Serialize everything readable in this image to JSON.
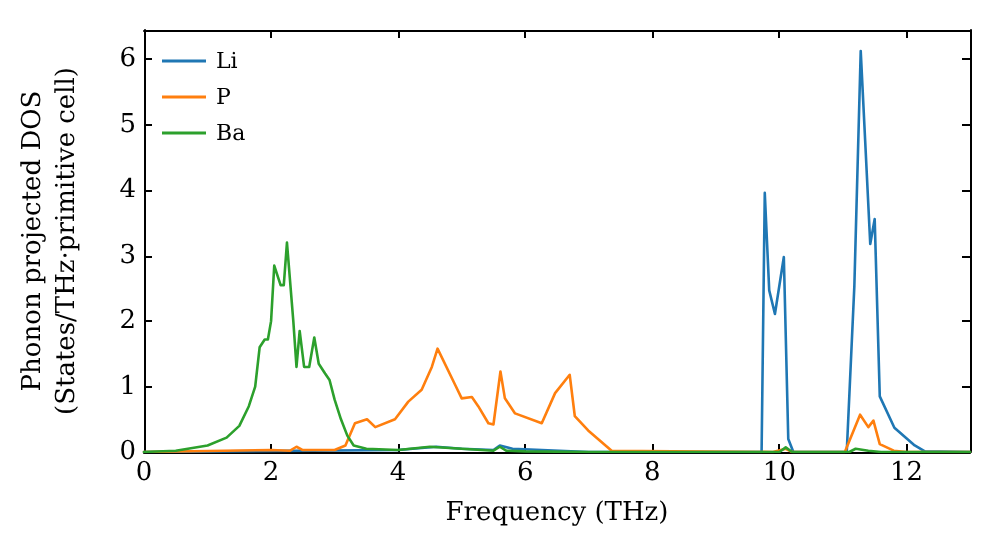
{
  "chart_data": {
    "type": "line",
    "xlabel": "Frequency (THz)",
    "ylabel": "Phonon projected DOS\n(States/THz·primitive cell)",
    "xlim": [
      0,
      13
    ],
    "ylim": [
      0,
      6.45
    ],
    "xticks": [
      0,
      2,
      4,
      6,
      8,
      10,
      12
    ],
    "yticks": [
      0,
      1,
      2,
      3,
      4,
      5,
      6
    ],
    "grid": false,
    "legend": "top left",
    "marker": "none",
    "line_style": "solid",
    "series": [
      {
        "name": "Li",
        "color": "#1f77b4",
        "x": [
          0,
          4.0,
          4.6,
          5.0,
          5.5,
          5.6,
          5.8,
          7.0,
          9.72,
          9.77,
          9.84,
          9.93,
          10.07,
          10.14,
          10.22,
          11.06,
          11.18,
          11.28,
          11.35,
          11.43,
          11.5,
          11.58,
          11.81,
          12.13,
          12.29,
          13
        ],
        "values": [
          0,
          0.03,
          0.08,
          0.05,
          0.03,
          0.1,
          0.05,
          0,
          0,
          3.96,
          2.47,
          2.11,
          2.98,
          0.2,
          0,
          0,
          2.54,
          6.13,
          4.76,
          3.18,
          3.56,
          0.85,
          0.37,
          0.1,
          0.01,
          0
        ]
      },
      {
        "name": "P",
        "color": "#ff7f0e",
        "x": [
          0,
          2.0,
          2.3,
          2.4,
          2.5,
          3.0,
          3.17,
          3.32,
          3.51,
          3.64,
          3.95,
          4.16,
          4.37,
          4.53,
          4.62,
          4.9,
          5.0,
          5.16,
          5.26,
          5.42,
          5.5,
          5.61,
          5.68,
          5.84,
          6.26,
          6.47,
          6.7,
          6.78,
          6.99,
          7.36,
          9.9,
          10.1,
          10.2,
          11.03,
          11.27,
          11.4,
          11.48,
          11.58,
          11.8,
          12.0,
          13
        ],
        "values": [
          0,
          0.03,
          0.02,
          0.08,
          0.03,
          0.03,
          0.1,
          0.44,
          0.5,
          0.38,
          0.5,
          0.77,
          0.95,
          1.3,
          1.58,
          1.02,
          0.82,
          0.84,
          0.7,
          0.44,
          0.42,
          1.23,
          0.82,
          0.59,
          0.44,
          0.9,
          1.18,
          0.55,
          0.33,
          0.02,
          0,
          0.05,
          0,
          0,
          0.57,
          0.38,
          0.48,
          0.12,
          0.02,
          0,
          0
        ]
      },
      {
        "name": "Ba",
        "color": "#2ca02c",
        "x": [
          0,
          0.5,
          1.0,
          1.3,
          1.5,
          1.65,
          1.75,
          1.82,
          1.9,
          1.95,
          2.0,
          2.05,
          2.15,
          2.2,
          2.25,
          2.35,
          2.4,
          2.45,
          2.52,
          2.6,
          2.68,
          2.75,
          2.85,
          2.92,
          3.0,
          3.1,
          3.2,
          3.3,
          3.5,
          4.0,
          4.5,
          5.0,
          5.5,
          5.6,
          5.7,
          6.0,
          7.0,
          10.0,
          10.1,
          10.2,
          11.1,
          11.2,
          11.4,
          11.6,
          13
        ],
        "values": [
          0,
          0.02,
          0.1,
          0.22,
          0.4,
          0.7,
          1.0,
          1.6,
          1.72,
          1.72,
          2.0,
          2.85,
          2.55,
          2.55,
          3.2,
          2.0,
          1.3,
          1.85,
          1.3,
          1.3,
          1.75,
          1.35,
          1.2,
          1.1,
          0.8,
          0.5,
          0.25,
          0.1,
          0.05,
          0.03,
          0.08,
          0.05,
          0.02,
          0.08,
          0.02,
          0.01,
          0,
          0,
          0.07,
          0,
          0,
          0.05,
          0.02,
          0,
          0
        ]
      }
    ]
  }
}
